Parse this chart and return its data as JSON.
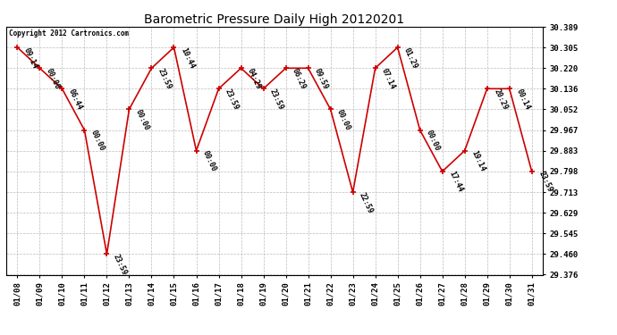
{
  "title": "Barometric Pressure Daily High 20120201",
  "copyright": "Copyright 2012 Cartronics.com",
  "x_labels": [
    "01/08",
    "01/09",
    "01/10",
    "01/11",
    "01/12",
    "01/13",
    "01/14",
    "01/15",
    "01/16",
    "01/17",
    "01/18",
    "01/19",
    "01/20",
    "01/21",
    "01/22",
    "01/23",
    "01/24",
    "01/25",
    "01/26",
    "01/27",
    "01/28",
    "01/29",
    "01/30",
    "01/31"
  ],
  "y_values": [
    30.305,
    30.22,
    30.136,
    29.967,
    29.46,
    30.052,
    30.22,
    30.305,
    29.883,
    30.136,
    30.22,
    30.136,
    30.22,
    30.22,
    30.052,
    29.713,
    30.22,
    30.305,
    29.967,
    29.798,
    29.883,
    30.136,
    30.136,
    29.798
  ],
  "point_labels": [
    "09:14",
    "00:00",
    "06:44",
    "00:00",
    "23:59",
    "00:00",
    "23:59",
    "10:44",
    "00:00",
    "23:59",
    "04:29",
    "23:59",
    "06:29",
    "09:59",
    "00:00",
    "22:59",
    "07:14",
    "01:29",
    "00:00",
    "17:44",
    "19:14",
    "20:29",
    "00:14",
    "23:59"
  ],
  "y_min": 29.376,
  "y_max": 30.389,
  "y_ticks": [
    29.376,
    29.46,
    29.545,
    29.629,
    29.713,
    29.798,
    29.883,
    29.967,
    30.052,
    30.136,
    30.22,
    30.305,
    30.389
  ],
  "line_color": "#cc0000",
  "marker_color": "#cc0000",
  "bg_color": "#ffffff",
  "grid_color": "#bbbbbb",
  "title_fontsize": 10,
  "label_fontsize": 6,
  "tick_fontsize": 6.5,
  "copyright_fontsize": 5.5
}
